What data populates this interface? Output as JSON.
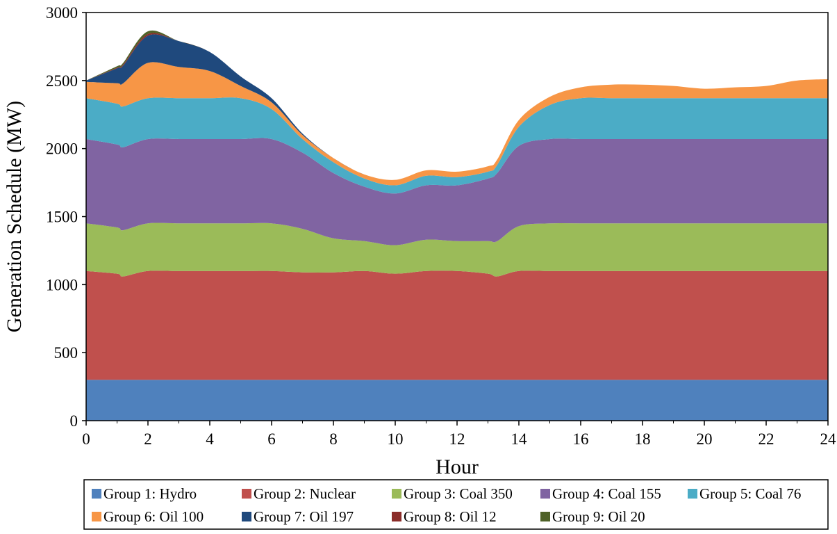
{
  "chart_data": {
    "type": "area",
    "stacked": true,
    "xlabel": "Hour",
    "ylabel": "Generation Schedule (MW)",
    "xlim": [
      0,
      24
    ],
    "ylim": [
      0,
      3000
    ],
    "x_ticks": [
      0,
      2,
      4,
      6,
      8,
      10,
      12,
      14,
      16,
      18,
      20,
      22,
      24
    ],
    "y_ticks": [
      0,
      500,
      1000,
      1500,
      2000,
      2500,
      3000
    ],
    "grid": false,
    "legend_position": "bottom",
    "x": [
      0,
      1,
      1.2,
      2,
      3,
      4,
      5,
      6,
      7,
      8,
      9,
      10,
      11,
      12,
      13,
      13.3,
      14,
      15,
      16,
      17,
      18,
      19,
      20,
      21,
      22,
      23,
      24
    ],
    "series": [
      {
        "name": "Group 1: Hydro",
        "color": "#4F81BD",
        "values": [
          300,
          300,
          300,
          300,
          300,
          300,
          300,
          300,
          300,
          300,
          300,
          300,
          300,
          300,
          300,
          300,
          300,
          300,
          300,
          300,
          300,
          300,
          300,
          300,
          300,
          300,
          300
        ]
      },
      {
        "name": "Group 2: Nuclear",
        "color": "#C0504D",
        "values": [
          800,
          780,
          760,
          800,
          800,
          800,
          800,
          800,
          790,
          790,
          800,
          780,
          800,
          800,
          780,
          760,
          800,
          800,
          800,
          800,
          800,
          800,
          800,
          800,
          800,
          800,
          800
        ]
      },
      {
        "name": "Group 3: Coal 350",
        "color": "#9BBB59",
        "values": [
          350,
          340,
          340,
          350,
          350,
          350,
          350,
          350,
          320,
          250,
          220,
          210,
          230,
          220,
          240,
          260,
          330,
          350,
          350,
          350,
          350,
          350,
          350,
          350,
          350,
          350,
          350
        ]
      },
      {
        "name": "Group 4: Coal 155",
        "color": "#8064A2",
        "values": [
          620,
          610,
          610,
          620,
          620,
          620,
          620,
          620,
          560,
          480,
          400,
          380,
          400,
          410,
          460,
          500,
          590,
          620,
          620,
          620,
          620,
          620,
          620,
          620,
          620,
          620,
          620
        ]
      },
      {
        "name": "Group 5: Coal 76",
        "color": "#4BACC6",
        "values": [
          300,
          300,
          300,
          300,
          300,
          300,
          300,
          220,
          100,
          80,
          60,
          60,
          70,
          60,
          50,
          60,
          140,
          250,
          300,
          300,
          300,
          300,
          300,
          300,
          300,
          300,
          300
        ]
      },
      {
        "name": "Group 6: Oil 100",
        "color": "#F79646",
        "values": [
          120,
          150,
          170,
          260,
          230,
          200,
          90,
          50,
          30,
          30,
          30,
          40,
          40,
          40,
          40,
          40,
          50,
          60,
          80,
          100,
          100,
          90,
          70,
          80,
          90,
          130,
          140
        ]
      },
      {
        "name": "Group 7: Oil 197",
        "color": "#1F497D",
        "values": [
          10,
          110,
          130,
          200,
          190,
          140,
          70,
          30,
          10,
          0,
          0,
          0,
          0,
          0,
          0,
          0,
          0,
          0,
          0,
          0,
          0,
          0,
          0,
          0,
          0,
          0,
          0
        ]
      },
      {
        "name": "Group 8: Oil 12",
        "color": "#8B2D2A",
        "values": [
          0,
          5,
          8,
          12,
          0,
          0,
          0,
          0,
          0,
          0,
          0,
          0,
          0,
          0,
          0,
          0,
          0,
          0,
          0,
          0,
          0,
          0,
          0,
          0,
          0,
          0,
          0
        ]
      },
      {
        "name": "Group 9: Oil 20",
        "color": "#4F6228",
        "values": [
          0,
          10,
          12,
          20,
          0,
          0,
          0,
          0,
          0,
          0,
          0,
          0,
          0,
          0,
          0,
          0,
          0,
          0,
          0,
          0,
          0,
          0,
          0,
          0,
          0,
          0,
          0
        ]
      }
    ]
  }
}
